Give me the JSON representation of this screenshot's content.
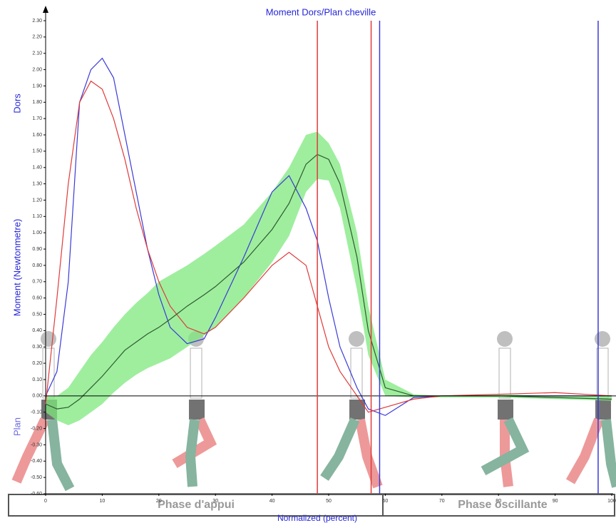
{
  "chart_data": {
    "type": "line",
    "title": "Moment Dors/Plan cheville",
    "y_label": "Moment (Newtonmetre)",
    "y_top_label": "Dors",
    "y_bottom_label": "Plan",
    "x_label": "Normalized (percent)",
    "phases": [
      "Phase d'appui",
      "Phase oscillante"
    ],
    "x": [
      0,
      2,
      4,
      6,
      8,
      10,
      12,
      14,
      16,
      18,
      20,
      22,
      25,
      28,
      30,
      35,
      40,
      43,
      46,
      48,
      50,
      52,
      55,
      57,
      60,
      65,
      70,
      80,
      90,
      100
    ],
    "series": [
      {
        "color": "#3a3ad8",
        "values": [
          0,
          0.15,
          0.7,
          1.8,
          2.0,
          2.07,
          1.95,
          1.6,
          1.25,
          0.9,
          0.62,
          0.42,
          0.32,
          0.35,
          0.48,
          0.85,
          1.25,
          1.35,
          1.15,
          0.95,
          0.6,
          0.3,
          0.05,
          -0.08,
          -0.12,
          -0.01,
          0,
          0,
          0,
          0
        ]
      },
      {
        "color": "#e03a3a",
        "values": [
          -0.05,
          0.6,
          1.3,
          1.8,
          1.93,
          1.88,
          1.7,
          1.45,
          1.15,
          0.9,
          0.7,
          0.55,
          0.42,
          0.38,
          0.42,
          0.6,
          0.8,
          0.88,
          0.8,
          0.55,
          0.3,
          0.15,
          0,
          -0.1,
          -0.07,
          -0.02,
          0,
          0.01,
          0.02,
          0
        ]
      },
      {
        "color": "#2f5a2f",
        "values": [
          -0.05,
          -0.08,
          -0.07,
          -0.02,
          0.05,
          0.12,
          0.2,
          0.28,
          0.33,
          0.38,
          0.42,
          0.47,
          0.55,
          0.62,
          0.67,
          0.82,
          1.02,
          1.18,
          1.42,
          1.48,
          1.45,
          1.3,
          0.85,
          0.4,
          0.05,
          0,
          0,
          0,
          -0.01,
          -0.02
        ]
      }
    ],
    "band": {
      "color": "#7ee87e",
      "upper": [
        0,
        0,
        0.05,
        0.15,
        0.25,
        0.33,
        0.42,
        0.5,
        0.57,
        0.63,
        0.7,
        0.74,
        0.8,
        0.87,
        0.92,
        1.05,
        1.25,
        1.4,
        1.6,
        1.62,
        1.55,
        1.42,
        1.0,
        0.55,
        0.1,
        0.01,
        0,
        0.01,
        0,
        0
      ],
      "lower": [
        -0.1,
        -0.15,
        -0.18,
        -0.15,
        -0.1,
        -0.05,
        0.02,
        0.08,
        0.13,
        0.17,
        0.2,
        0.23,
        0.3,
        0.37,
        0.42,
        0.6,
        0.82,
        0.98,
        1.25,
        1.33,
        1.32,
        1.15,
        0.65,
        0.25,
        0,
        -0.01,
        -0.01,
        -0.01,
        -0.02,
        -0.03
      ]
    },
    "vertical_lines": [
      {
        "x": 48,
        "color": "#e03a3a"
      },
      {
        "x": 57.5,
        "color": "#e03a3a"
      },
      {
        "x": 59,
        "color": "#3a3ad8"
      },
      {
        "x": 97.6,
        "color": "#3a3ad8"
      }
    ],
    "xlim": [
      0,
      100
    ],
    "xticks": [
      0,
      10,
      20,
      30,
      40,
      50,
      60,
      70,
      80,
      90,
      100
    ],
    "ylim": [
      -0.6,
      2.3
    ],
    "yticks": [
      {
        "value": -0.6,
        "label": "-0.60"
      },
      {
        "value": -0.5,
        "label": "-0.50"
      },
      {
        "value": -0.4,
        "label": "-0.40"
      },
      {
        "value": -0.3,
        "label": "-0.30"
      },
      {
        "value": -0.2,
        "label": "-0.20"
      },
      {
        "value": -0.1,
        "label": "-0.10"
      },
      {
        "value": 0,
        "label": "0.00"
      },
      {
        "value": 0.1,
        "label": "0.10"
      },
      {
        "value": 0.2,
        "label": "0.20"
      },
      {
        "value": 0.3,
        "label": "0.30"
      },
      {
        "value": 0.4,
        "label": "0.40"
      },
      {
        "value": 0.5,
        "label": "0.50"
      },
      {
        "value": 0.6,
        "label": "0.60"
      },
      {
        "value": 0.7,
        "label": "0.70"
      },
      {
        "value": 0.8,
        "label": "0.80"
      },
      {
        "value": 0.9,
        "label": "0.90"
      },
      {
        "value": 1.0,
        "label": "1.00"
      },
      {
        "value": 1.1,
        "label": "1.10"
      },
      {
        "value": 1.2,
        "label": "1.20"
      },
      {
        "value": 1.3,
        "label": "1.30"
      },
      {
        "value": 1.4,
        "label": "1.40"
      },
      {
        "value": 1.5,
        "label": "1.50"
      },
      {
        "value": 1.6,
        "label": "1.60"
      },
      {
        "value": 1.7,
        "label": "1.70"
      },
      {
        "value": 1.8,
        "label": "1.80"
      },
      {
        "value": 1.9,
        "label": "1.90"
      },
      {
        "value": 2.0,
        "label": "2.00"
      },
      {
        "value": 2.1,
        "label": "2.10"
      },
      {
        "value": 2.2,
        "label": "2.20"
      },
      {
        "value": 2.3,
        "label": "2.30"
      }
    ]
  }
}
